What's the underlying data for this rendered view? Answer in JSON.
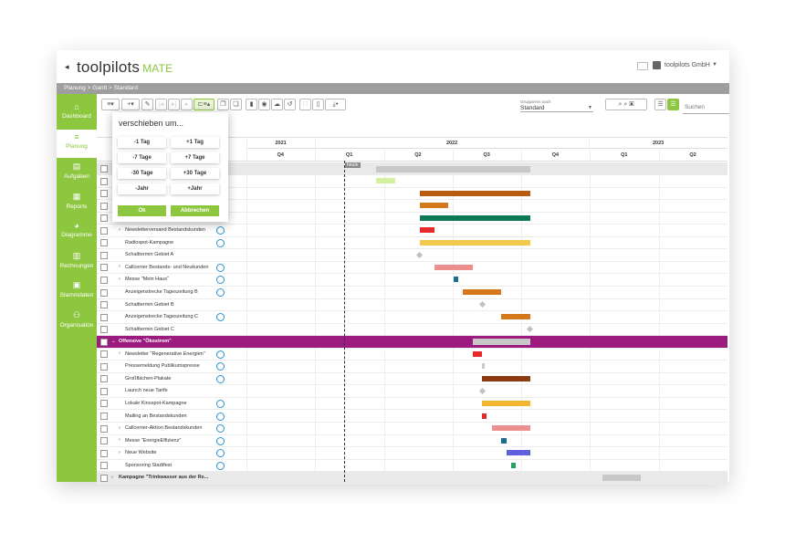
{
  "app": {
    "logo_main": "toolpilots",
    "logo_sub": "MATE",
    "company": "toolpilots GmbH"
  },
  "breadcrumb": "Planung  >  Gantt  >  Standard",
  "nav": [
    {
      "label": "Dashboard",
      "icon": "home-icon",
      "glyph": "⌂"
    },
    {
      "label": "Planung",
      "icon": "planning-icon",
      "glyph": "≡"
    },
    {
      "label": "Aufgaben",
      "icon": "tasks-icon",
      "glyph": "▤"
    },
    {
      "label": "Reports",
      "icon": "reports-icon",
      "glyph": "▦"
    },
    {
      "label": "Diagramme",
      "icon": "pie-chart-icon",
      "glyph": "◕"
    },
    {
      "label": "Rechnungen",
      "icon": "invoice-icon",
      "glyph": "▥"
    },
    {
      "label": "Stammdaten",
      "icon": "image-icon",
      "glyph": "▣"
    },
    {
      "label": "Organisation",
      "icon": "org-icon",
      "glyph": "⚇"
    }
  ],
  "toolbar": {
    "group_label": "Gruppieren nach",
    "group_value": "Standard",
    "search_placeholder": "Suchen"
  },
  "timeline": {
    "years": [
      {
        "label": "2021"
      },
      {
        "label": "2022"
      },
      {
        "label": "2023"
      }
    ],
    "quarters": [
      "Q4",
      "Q1",
      "Q2",
      "Q3",
      "Q4",
      "Q1",
      "Q2"
    ],
    "today_label": "heute"
  },
  "popup": {
    "title": "verschieben um...",
    "buttons": [
      "-1 Tag",
      "+1 Tag",
      "-7 Tage",
      "+7 Tage",
      "-30 Tage",
      "+30 Tage",
      "-Jahr",
      "+Jahr"
    ],
    "ok": "Ok",
    "cancel": "Abbrechen"
  },
  "tasks": [
    {
      "name": "",
      "bar": {
        "color": "#c8c8c8",
        "start": 0.27,
        "end": 0.59
      },
      "kind": "summary"
    },
    {
      "name": "",
      "bar": {
        "color": "#d4f0a0",
        "start": 0.27,
        "end": 0.31
      }
    },
    {
      "name": "",
      "bar": {
        "color": "#b85c10",
        "start": 0.36,
        "end": 0.59
      }
    },
    {
      "name": "",
      "bar": {
        "color": "#d4781a",
        "start": 0.36,
        "end": 0.42
      }
    },
    {
      "name": "",
      "bar": {
        "color": "#0e7a55",
        "start": 0.36,
        "end": 0.59
      }
    },
    {
      "name": "Newsletterversand Bestandskunden",
      "chev": true,
      "prog": true,
      "bar": {
        "color": "#e52a2a",
        "start": 0.36,
        "end": 0.39
      }
    },
    {
      "name": "Radiospot-Kampagne",
      "prog": true,
      "bar": {
        "color": "#f2c94c",
        "start": 0.36,
        "end": 0.59
      }
    },
    {
      "name": "Schalttermin Gebiet A",
      "milestone": 0.36
    },
    {
      "name": "Callcenter Bestands- und Neukunden",
      "chev": true,
      "prog": true,
      "bar": {
        "color": "#ee8f8f",
        "start": 0.39,
        "end": 0.47
      }
    },
    {
      "name": "Messe \"Mein Haus\"",
      "chev": true,
      "prog": true,
      "bar": {
        "color": "#1a6e8e",
        "start": 0.43,
        "end": 0.44
      }
    },
    {
      "name": "Anzeigenstrecke Tageszeitung B",
      "prog": true,
      "bar": {
        "color": "#d4781a",
        "start": 0.45,
        "end": 0.53
      }
    },
    {
      "name": "Schalttermin Gebiet B",
      "milestone": 0.49
    },
    {
      "name": "Anzeigenstrecke Tageszeitung C",
      "prog": true,
      "bar": {
        "color": "#d4781a",
        "start": 0.53,
        "end": 0.59
      }
    },
    {
      "name": "Schalttermin Gebiet C",
      "milestone": 0.59
    },
    {
      "name": "Offensive \"Ökostrom\"",
      "kind": "group",
      "open": true,
      "bar": {
        "color": "#c8c8c8",
        "start": 0.47,
        "end": 0.59
      }
    },
    {
      "name": "Newsletter \"Regenerative Energien\"",
      "chev": true,
      "prog": true,
      "bar": {
        "color": "#e52a2a",
        "start": 0.47,
        "end": 0.49
      }
    },
    {
      "name": "Pressemeldung Publikumspresse",
      "prog": true,
      "bar": {
        "color": "#c8c8c8",
        "start": 0.49,
        "end": 0.495
      }
    },
    {
      "name": "Großflächen-Plakate",
      "prog": true,
      "bar": {
        "color": "#8b3a12",
        "start": 0.49,
        "end": 0.59
      }
    },
    {
      "name": "Launch neue Tarife",
      "milestone": 0.49
    },
    {
      "name": "Lokale Kinospot-Kampagne",
      "prog": true,
      "bar": {
        "color": "#f2b630",
        "start": 0.49,
        "end": 0.59
      }
    },
    {
      "name": "Mailing an Bestandskunden",
      "prog": true,
      "bar": {
        "color": "#e52a2a",
        "start": 0.49,
        "end": 0.5
      }
    },
    {
      "name": "Callcenter-Aktion Bestandskunden",
      "chev": true,
      "prog": true,
      "bar": {
        "color": "#ee8f8f",
        "start": 0.51,
        "end": 0.59
      }
    },
    {
      "name": "Messe \"EnergieEffizienz\"",
      "chev": true,
      "prog": true,
      "bar": {
        "color": "#1a6e8e",
        "start": 0.53,
        "end": 0.54
      }
    },
    {
      "name": "Neue Website",
      "chev": true,
      "prog": true,
      "bar": {
        "color": "#6060e0",
        "start": 0.54,
        "end": 0.59
      }
    },
    {
      "name": "Sponsoring Stadtfest",
      "prog": true,
      "bar": {
        "color": "#2ba060",
        "start": 0.55,
        "end": 0.56
      }
    },
    {
      "name": "Kampagne \"Trinkwasser aus der Re...",
      "kind": "group",
      "bar": {
        "color": "#c8c8c8",
        "start": 0.74,
        "end": 0.82
      }
    }
  ]
}
